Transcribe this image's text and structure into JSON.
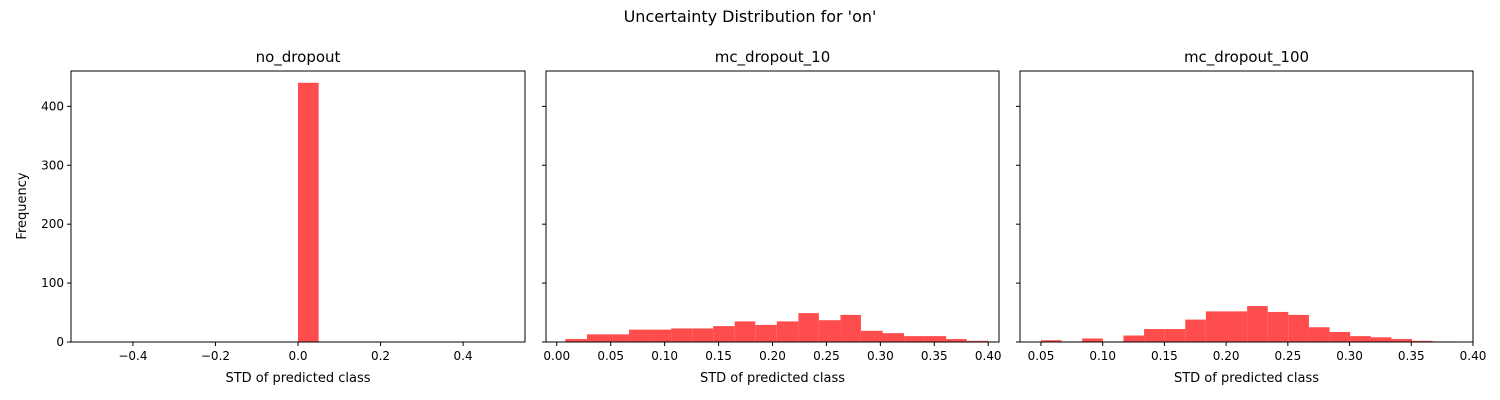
{
  "figure": {
    "title": "Uncertainty Distribution for 'on'",
    "ylabel": "Frequency",
    "bar_color": "#ff4d4d"
  },
  "chart_data": [
    {
      "type": "bar",
      "title": "no_dropout",
      "xlabel": "STD of predicted class",
      "ylabel": "Frequency",
      "xlim": [
        -0.55,
        0.55
      ],
      "ylim": [
        0,
        460
      ],
      "xticks": [
        -0.4,
        -0.2,
        0.0,
        0.2,
        0.4
      ],
      "xtick_labels": [
        "−0.4",
        "−0.2",
        "0.0",
        "0.2",
        "0.4"
      ],
      "yticks": [
        0,
        100,
        200,
        300,
        400
      ],
      "bins": [
        {
          "x0": 0.0,
          "x1": 0.05,
          "count": 440
        }
      ]
    },
    {
      "type": "bar",
      "title": "mc_dropout_10",
      "xlabel": "STD of predicted class",
      "xlim": [
        -0.01,
        0.41
      ],
      "ylim": [
        0,
        460
      ],
      "xticks": [
        0.0,
        0.05,
        0.1,
        0.15,
        0.2,
        0.25,
        0.3,
        0.35,
        0.4
      ],
      "xtick_labels": [
        "0.00",
        "0.05",
        "0.10",
        "0.15",
        "0.20",
        "0.25",
        "0.30",
        "0.35",
        "0.40"
      ],
      "yticks": [
        0,
        100,
        200,
        300,
        400
      ],
      "bins": [
        {
          "x0": 0.008,
          "x1": 0.028,
          "count": 5
        },
        {
          "x0": 0.028,
          "x1": 0.047,
          "count": 13
        },
        {
          "x0": 0.047,
          "x1": 0.067,
          "count": 13
        },
        {
          "x0": 0.067,
          "x1": 0.086,
          "count": 21
        },
        {
          "x0": 0.086,
          "x1": 0.106,
          "count": 21
        },
        {
          "x0": 0.106,
          "x1": 0.126,
          "count": 23
        },
        {
          "x0": 0.126,
          "x1": 0.145,
          "count": 23
        },
        {
          "x0": 0.145,
          "x1": 0.165,
          "count": 27
        },
        {
          "x0": 0.165,
          "x1": 0.184,
          "count": 35
        },
        {
          "x0": 0.184,
          "x1": 0.204,
          "count": 29
        },
        {
          "x0": 0.204,
          "x1": 0.224,
          "count": 35
        },
        {
          "x0": 0.224,
          "x1": 0.243,
          "count": 49
        },
        {
          "x0": 0.243,
          "x1": 0.263,
          "count": 37
        },
        {
          "x0": 0.263,
          "x1": 0.282,
          "count": 46
        },
        {
          "x0": 0.282,
          "x1": 0.302,
          "count": 19
        },
        {
          "x0": 0.302,
          "x1": 0.322,
          "count": 15
        },
        {
          "x0": 0.322,
          "x1": 0.341,
          "count": 10
        },
        {
          "x0": 0.341,
          "x1": 0.361,
          "count": 10
        },
        {
          "x0": 0.361,
          "x1": 0.38,
          "count": 5
        },
        {
          "x0": 0.38,
          "x1": 0.4,
          "count": 2
        }
      ]
    },
    {
      "type": "bar",
      "title": "mc_dropout_100",
      "xlabel": "STD of predicted class",
      "xlim": [
        0.033,
        0.4
      ],
      "ylim": [
        0,
        460
      ],
      "xticks": [
        0.05,
        0.1,
        0.15,
        0.2,
        0.25,
        0.3,
        0.35,
        0.4
      ],
      "xtick_labels": [
        "0.05",
        "0.10",
        "0.15",
        "0.20",
        "0.25",
        "0.30",
        "0.35",
        "0.40"
      ],
      "yticks": [
        0,
        100,
        200,
        300,
        400
      ],
      "bins": [
        {
          "x0": 0.05,
          "x1": 0.0667,
          "count": 3
        },
        {
          "x0": 0.0667,
          "x1": 0.0834,
          "count": 1
        },
        {
          "x0": 0.0834,
          "x1": 0.1001,
          "count": 6
        },
        {
          "x0": 0.1001,
          "x1": 0.1168,
          "count": 1
        },
        {
          "x0": 0.1168,
          "x1": 0.1335,
          "count": 11
        },
        {
          "x0": 0.1335,
          "x1": 0.1502,
          "count": 22
        },
        {
          "x0": 0.1502,
          "x1": 0.1669,
          "count": 22
        },
        {
          "x0": 0.1669,
          "x1": 0.1836,
          "count": 38
        },
        {
          "x0": 0.1836,
          "x1": 0.2003,
          "count": 52
        },
        {
          "x0": 0.2003,
          "x1": 0.217,
          "count": 52
        },
        {
          "x0": 0.217,
          "x1": 0.2337,
          "count": 61
        },
        {
          "x0": 0.2337,
          "x1": 0.2504,
          "count": 51
        },
        {
          "x0": 0.2504,
          "x1": 0.2671,
          "count": 46
        },
        {
          "x0": 0.2671,
          "x1": 0.2838,
          "count": 25
        },
        {
          "x0": 0.2838,
          "x1": 0.3005,
          "count": 17
        },
        {
          "x0": 0.3005,
          "x1": 0.3172,
          "count": 10
        },
        {
          "x0": 0.3172,
          "x1": 0.3339,
          "count": 8
        },
        {
          "x0": 0.3339,
          "x1": 0.3506,
          "count": 5
        },
        {
          "x0": 0.3506,
          "x1": 0.3673,
          "count": 2
        },
        {
          "x0": 0.3673,
          "x1": 0.384,
          "count": 1
        }
      ]
    }
  ]
}
